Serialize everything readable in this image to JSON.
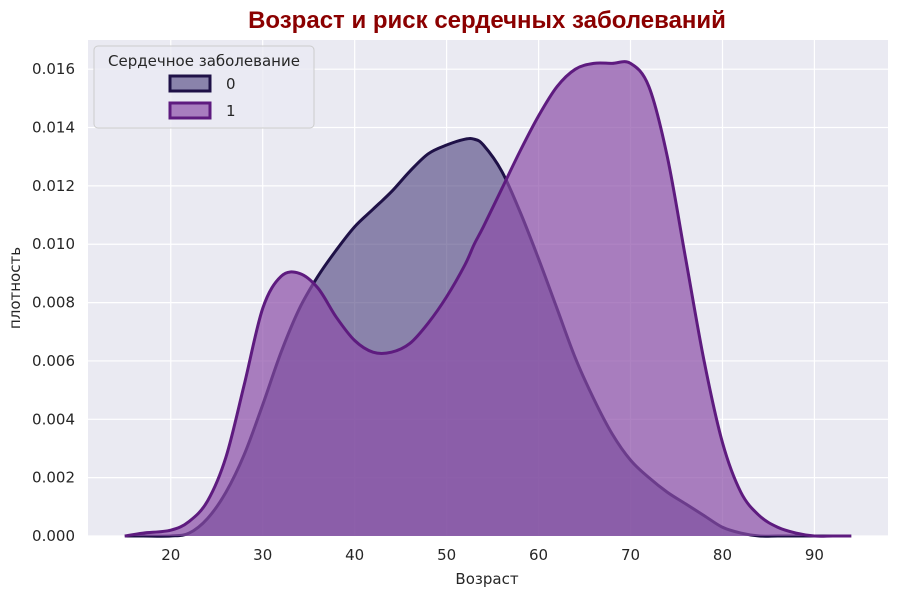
{
  "chart_data": {
    "type": "area",
    "title": "Возраст и риск сердечных заболеваний",
    "xlabel": "Возраст",
    "ylabel": "плотность",
    "xlim": [
      11,
      98
    ],
    "ylim": [
      0,
      0.017
    ],
    "xticks": [
      "20",
      "30",
      "40",
      "50",
      "60",
      "70",
      "80",
      "90"
    ],
    "yticks": [
      "0.000",
      "0.002",
      "0.004",
      "0.006",
      "0.008",
      "0.010",
      "0.012",
      "0.014",
      "0.016"
    ],
    "grid": true,
    "legend": {
      "title": "Сердечное заболевание",
      "placement": "top-left"
    },
    "x": [
      15,
      17,
      20,
      22,
      24,
      26,
      28,
      30,
      32,
      34,
      36,
      38,
      40,
      42,
      44,
      46,
      48,
      50,
      52,
      53,
      54,
      56,
      58,
      60,
      62,
      64,
      66,
      68,
      70,
      72,
      74,
      76,
      78,
      80,
      82,
      84,
      86,
      88,
      90,
      92,
      94
    ],
    "series": [
      {
        "name": "0",
        "color": "#1f1147",
        "values": [
          0.0,
          0.0,
          0.0,
          0.0001,
          0.0006,
          0.0015,
          0.0028,
          0.0045,
          0.0063,
          0.0078,
          0.0089,
          0.0098,
          0.0106,
          0.0112,
          0.0118,
          0.0125,
          0.0131,
          0.0134,
          0.0136,
          0.0136,
          0.0134,
          0.0125,
          0.0111,
          0.0095,
          0.0078,
          0.0061,
          0.0047,
          0.0035,
          0.0026,
          0.002,
          0.0015,
          0.0011,
          0.0007,
          0.0003,
          0.0001,
          0.0,
          0.0,
          0.0,
          0.0,
          0.0,
          0.0
        ]
      },
      {
        "name": "1",
        "color": "#5e1b7f",
        "values": [
          0.0,
          0.0001,
          0.0002,
          0.0005,
          0.0012,
          0.0027,
          0.0052,
          0.0078,
          0.0089,
          0.009,
          0.0085,
          0.0075,
          0.0067,
          0.0063,
          0.0063,
          0.0066,
          0.0073,
          0.0082,
          0.0093,
          0.01,
          0.0106,
          0.0119,
          0.0132,
          0.0144,
          0.0154,
          0.016,
          0.0162,
          0.0162,
          0.0162,
          0.0154,
          0.013,
          0.0095,
          0.006,
          0.0032,
          0.0015,
          0.0007,
          0.0003,
          0.0001,
          0.0,
          0.0,
          0.0
        ]
      }
    ]
  },
  "colors": {
    "title": "#8b0000",
    "plot_bg": "#eaeaf2",
    "grid": "#ffffff",
    "series0_fill": "#4a3d7c",
    "series0_line": "#1f1147",
    "series1_fill": "#8b4ea8",
    "series1_line": "#5e1b7f"
  }
}
